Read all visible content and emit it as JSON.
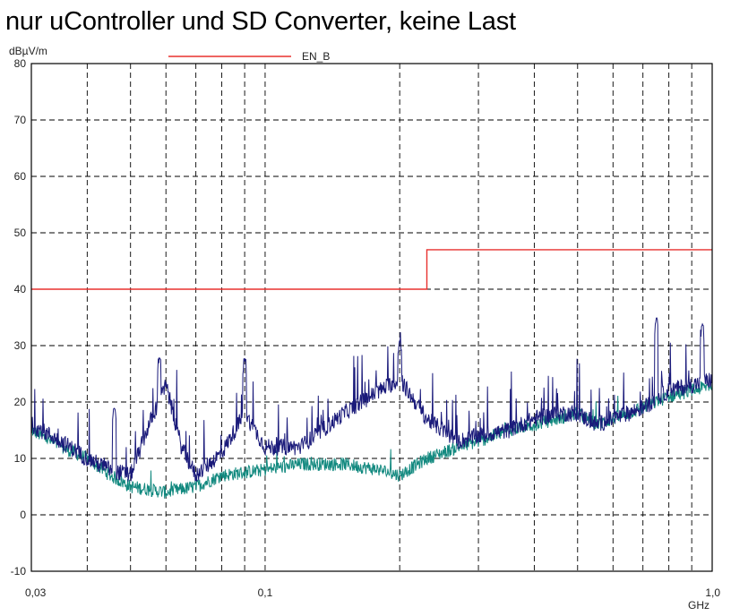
{
  "page": {
    "title": "nur uController und SD Converter, keine Last"
  },
  "chart_data": {
    "type": "line",
    "title": "nur uController und SD Converter, keine Last",
    "xlabel": "GHz",
    "ylabel": "dBµV/m",
    "x_scale": "log",
    "xlim": [
      0.03,
      1.0
    ],
    "ylim": [
      -10,
      80
    ],
    "y_ticks": [
      -10,
      0,
      10,
      20,
      30,
      40,
      50,
      60,
      70,
      80
    ],
    "y_tick_labels": [
      "-10",
      "0",
      "10",
      "20",
      "30",
      "40",
      "50",
      "60",
      "70",
      "80"
    ],
    "x_tick_labels": [
      {
        "value": 0.03,
        "label": "0,03"
      },
      {
        "value": 0.1,
        "label": "0,1"
      },
      {
        "value": 1.0,
        "label": "1,0"
      }
    ],
    "x_gridlines": [
      0.04,
      0.05,
      0.06,
      0.07,
      0.08,
      0.09,
      0.1,
      0.2,
      0.3,
      0.4,
      0.5,
      0.6,
      0.7,
      0.8,
      0.9
    ],
    "grid": true,
    "legend": {
      "position": "top",
      "entries": [
        "EN_B"
      ]
    },
    "colors": {
      "limit": "#e8312f",
      "peak": "#1a1a7a",
      "average": "#12897f",
      "grid": "#000000"
    },
    "series": [
      {
        "name": "EN_B",
        "x": [
          0.03,
          0.23,
          0.23,
          1.0
        ],
        "values": [
          40,
          40,
          47,
          47
        ]
      },
      {
        "x": [
          0.03,
          0.035,
          0.04,
          0.045,
          0.05,
          0.055,
          0.06,
          0.065,
          0.07,
          0.08,
          0.09,
          0.1,
          0.12,
          0.15,
          0.18,
          0.2,
          0.23,
          0.27,
          0.3,
          0.35,
          0.4,
          0.45,
          0.5,
          0.55,
          0.6,
          0.7,
          0.8,
          0.9,
          1.0
        ],
        "values": [
          16,
          13,
          10,
          8,
          7,
          16,
          23,
          12,
          7,
          11,
          18,
          12,
          12,
          18,
          22,
          24,
          17,
          13,
          14,
          15,
          17,
          18,
          18,
          16,
          17,
          19,
          22,
          23,
          24
        ]
      },
      {
        "x": [
          0.03,
          0.035,
          0.04,
          0.045,
          0.05,
          0.06,
          0.07,
          0.08,
          0.1,
          0.12,
          0.15,
          0.18,
          0.2,
          0.23,
          0.27,
          0.3,
          0.35,
          0.4,
          0.45,
          0.5,
          0.55,
          0.6,
          0.7,
          0.8,
          0.9,
          1.0
        ],
        "values": [
          15,
          12,
          10,
          7,
          5,
          4,
          5,
          7,
          8,
          9,
          9,
          8,
          7,
          10,
          12,
          13,
          15,
          16,
          17,
          18,
          16,
          17,
          19,
          21,
          22,
          23
        ]
      }
    ],
    "peaks": [
      {
        "x": 0.046,
        "value": 19
      },
      {
        "x": 0.058,
        "value": 28
      },
      {
        "x": 0.09,
        "value": 28
      },
      {
        "x": 0.2,
        "value": 31
      },
      {
        "x": 0.75,
        "value": 35
      },
      {
        "x": 0.95,
        "value": 34
      }
    ]
  }
}
